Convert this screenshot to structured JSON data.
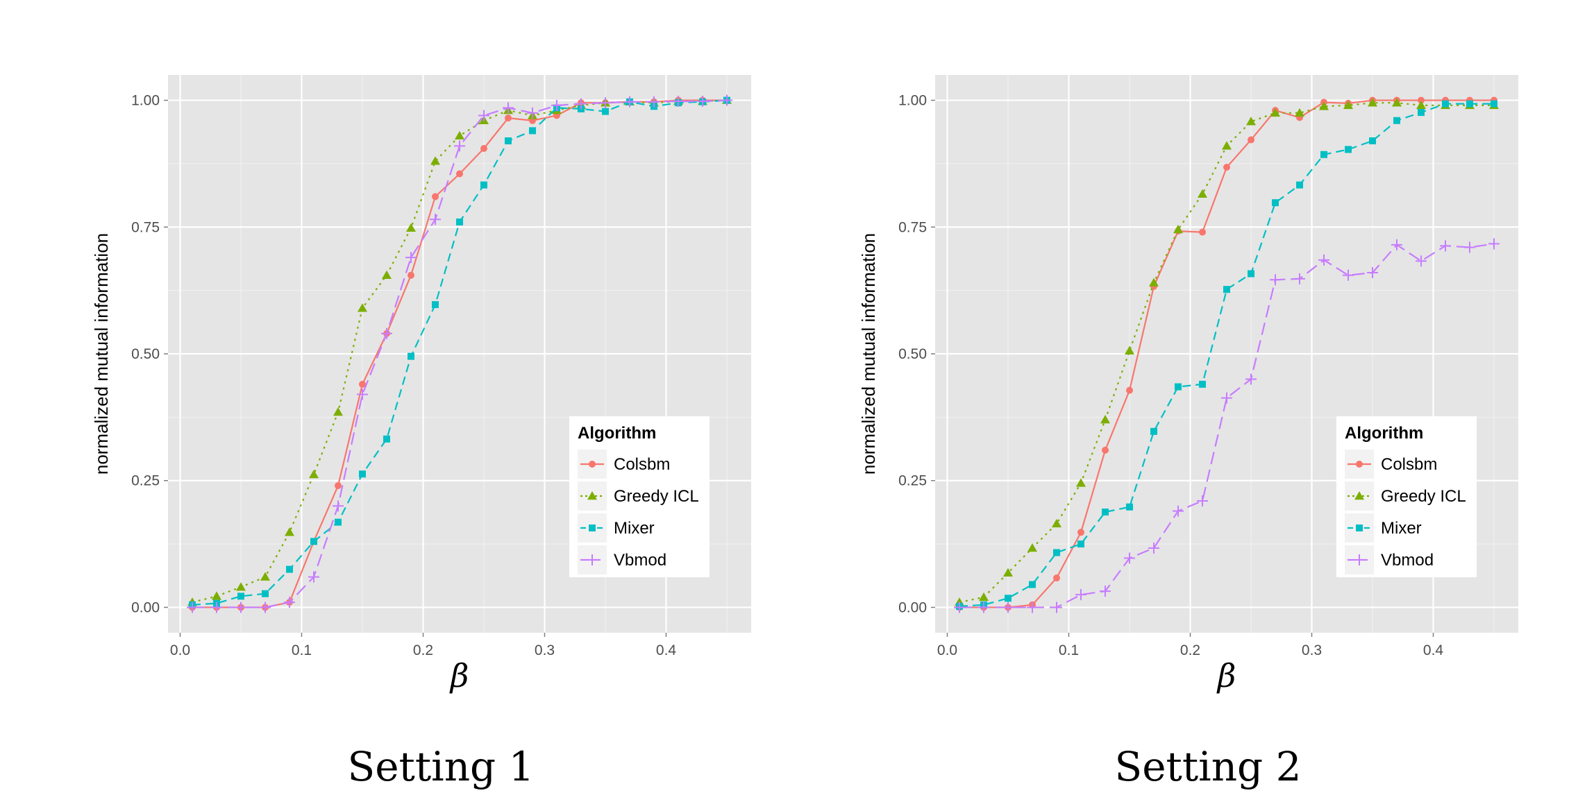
{
  "colors": {
    "Colsbm": "#F8766D",
    "Greedy ICL": "#7CAE00",
    "Mixer": "#00BFC4",
    "Vbmod": "#C77CFF",
    "panel_bg": "#E5E5E5",
    "grid": "#FFFFFF"
  },
  "chart_data": [
    {
      "type": "line",
      "caption": "Setting 1",
      "xlabel": "β",
      "ylabel": "normalized mutual information",
      "xlim": [
        -0.01,
        0.47
      ],
      "ylim": [
        -0.05,
        1.05
      ],
      "xticks": [
        0.0,
        0.1,
        0.2,
        0.3,
        0.4
      ],
      "xtick_labels": [
        "0.0",
        "0.1",
        "0.2",
        "0.3",
        "0.4"
      ],
      "yticks": [
        0.0,
        0.25,
        0.5,
        0.75,
        1.0
      ],
      "ytick_labels": [
        "0.00",
        "0.25",
        "0.50",
        "0.75",
        "1.00"
      ],
      "grid": true,
      "legend": {
        "title": "Algorithm",
        "position": "bottom-right"
      },
      "x": [
        0.01,
        0.03,
        0.05,
        0.07,
        0.09,
        0.11,
        0.13,
        0.15,
        0.17,
        0.19,
        0.21,
        0.23,
        0.25,
        0.27,
        0.29,
        0.31,
        0.33,
        0.35,
        0.37,
        0.39,
        0.41,
        0.43,
        0.45
      ],
      "series": [
        {
          "name": "Colsbm",
          "marker": "circle",
          "dash": "solid",
          "values": [
            0.0,
            0.0,
            0.0,
            0.0,
            0.01,
            0.13,
            0.24,
            0.44,
            0.54,
            0.655,
            0.81,
            0.855,
            0.905,
            0.965,
            0.96,
            0.97,
            0.995,
            0.995,
            0.997,
            0.997,
            1.0,
            1.0,
            1.0
          ]
        },
        {
          "name": "Greedy ICL",
          "marker": "triangle",
          "dash": "dotted",
          "values": [
            0.01,
            0.022,
            0.04,
            0.06,
            0.148,
            0.262,
            0.385,
            0.59,
            0.655,
            0.748,
            0.88,
            0.93,
            0.96,
            0.98,
            0.97,
            0.98,
            0.99,
            0.995,
            0.997,
            0.995,
            0.998,
            0.998,
            1.0
          ]
        },
        {
          "name": "Mixer",
          "marker": "square",
          "dash": "dashed",
          "values": [
            0.005,
            0.008,
            0.022,
            0.027,
            0.075,
            0.13,
            0.168,
            0.263,
            0.332,
            0.495,
            0.597,
            0.76,
            0.833,
            0.92,
            0.94,
            0.985,
            0.983,
            0.978,
            0.997,
            0.988,
            0.995,
            0.997,
            1.0
          ]
        },
        {
          "name": "Vbmod",
          "marker": "plus",
          "dash": "longdash",
          "values": [
            0.0,
            0.0,
            0.0,
            0.0,
            0.01,
            0.06,
            0.2,
            0.42,
            0.54,
            0.69,
            0.765,
            0.91,
            0.97,
            0.985,
            0.975,
            0.99,
            0.993,
            0.995,
            0.997,
            0.997,
            0.998,
            0.998,
            1.0
          ]
        }
      ]
    },
    {
      "type": "line",
      "caption": "Setting 2",
      "xlabel": "β",
      "ylabel": "normalized mutual information",
      "xlim": [
        -0.01,
        0.47
      ],
      "ylim": [
        -0.05,
        1.05
      ],
      "xticks": [
        0.0,
        0.1,
        0.2,
        0.3,
        0.4
      ],
      "xtick_labels": [
        "0.0",
        "0.1",
        "0.2",
        "0.3",
        "0.4"
      ],
      "yticks": [
        0.0,
        0.25,
        0.5,
        0.75,
        1.0
      ],
      "ytick_labels": [
        "0.00",
        "0.25",
        "0.50",
        "0.75",
        "1.00"
      ],
      "grid": true,
      "legend": {
        "title": "Algorithm",
        "position": "bottom-right"
      },
      "x": [
        0.01,
        0.03,
        0.05,
        0.07,
        0.09,
        0.11,
        0.13,
        0.15,
        0.17,
        0.19,
        0.21,
        0.23,
        0.25,
        0.27,
        0.29,
        0.31,
        0.33,
        0.35,
        0.37,
        0.39,
        0.41,
        0.43,
        0.45
      ],
      "series": [
        {
          "name": "Colsbm",
          "marker": "circle",
          "dash": "solid",
          "values": [
            0.0,
            0.0,
            0.0,
            0.005,
            0.058,
            0.148,
            0.31,
            0.428,
            0.633,
            0.742,
            0.74,
            0.868,
            0.922,
            0.98,
            0.966,
            0.996,
            0.994,
            1.0,
            1.0,
            1.0,
            1.0,
            1.0,
            1.0
          ]
        },
        {
          "name": "Greedy ICL",
          "marker": "triangle",
          "dash": "dotted",
          "values": [
            0.01,
            0.02,
            0.068,
            0.117,
            0.165,
            0.245,
            0.37,
            0.506,
            0.64,
            0.745,
            0.815,
            0.91,
            0.958,
            0.975,
            0.975,
            0.988,
            0.99,
            0.995,
            0.995,
            0.99,
            0.99,
            0.99,
            0.99
          ]
        },
        {
          "name": "Mixer",
          "marker": "square",
          "dash": "dashed",
          "values": [
            0.002,
            0.005,
            0.018,
            0.045,
            0.108,
            0.125,
            0.188,
            0.198,
            0.347,
            0.435,
            0.44,
            0.627,
            0.658,
            0.798,
            0.833,
            0.893,
            0.903,
            0.92,
            0.96,
            0.976,
            0.993,
            0.993,
            0.993
          ]
        },
        {
          "name": "Vbmod",
          "marker": "plus",
          "dash": "longdash",
          "values": [
            0.0,
            0.0,
            0.0,
            0.0,
            0.0,
            0.025,
            0.032,
            0.097,
            0.117,
            0.19,
            0.21,
            0.413,
            0.45,
            0.646,
            0.648,
            0.685,
            0.655,
            0.66,
            0.715,
            0.683,
            0.713,
            0.71,
            0.717
          ]
        }
      ]
    }
  ]
}
